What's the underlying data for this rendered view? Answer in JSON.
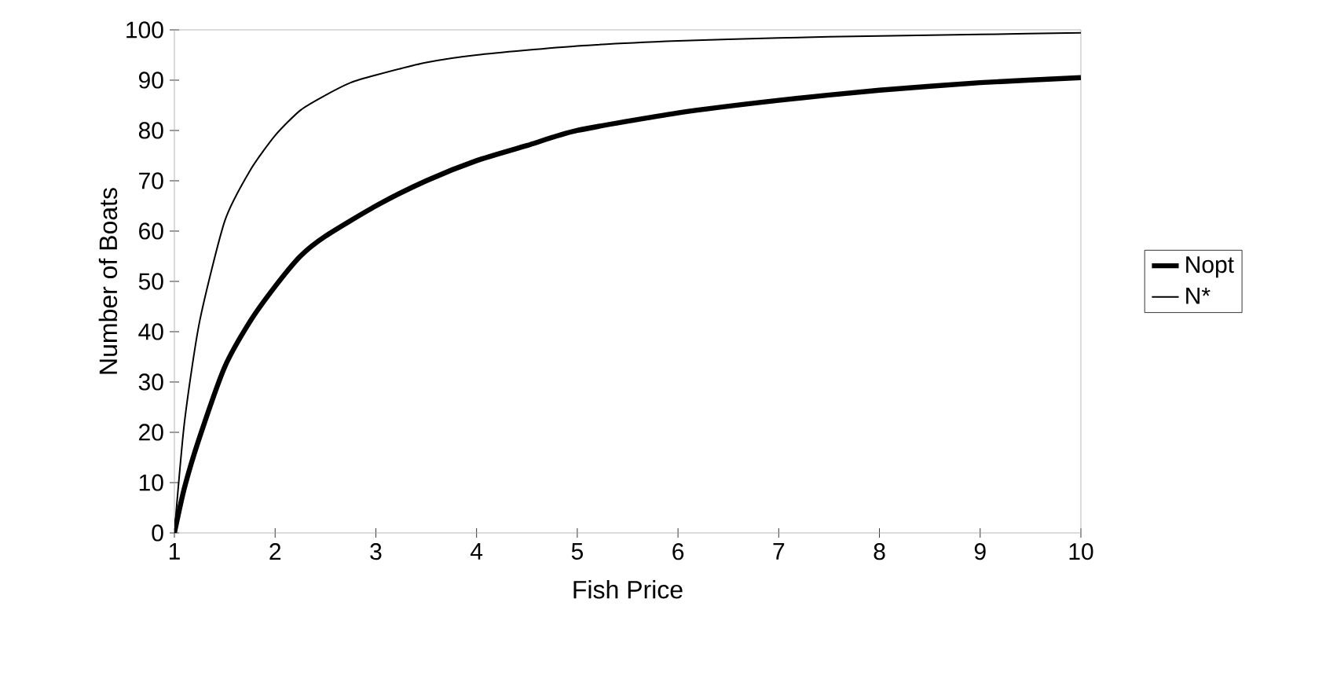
{
  "chart_data": {
    "type": "line",
    "xlabel": "Fish Price",
    "ylabel": "Number of Boats",
    "xlim": [
      1,
      10
    ],
    "ylim": [
      0,
      100
    ],
    "xticks": [
      1,
      2,
      3,
      4,
      5,
      6,
      7,
      8,
      9,
      10
    ],
    "yticks": [
      0,
      10,
      20,
      30,
      40,
      50,
      60,
      70,
      80,
      90,
      100
    ],
    "legend": "right",
    "grid": false,
    "marker": "none",
    "series": [
      {
        "name": "Nopt",
        "color": "#000000",
        "x": [
          1,
          1.1,
          1.25,
          1.5,
          1.75,
          2,
          2.25,
          2.5,
          3,
          3.5,
          4,
          4.5,
          5,
          6,
          7,
          8,
          9,
          10
        ],
        "values": [
          0,
          9,
          19,
          33,
          42,
          49,
          55,
          59,
          65,
          70,
          74,
          77,
          80,
          83.5,
          86,
          88,
          89.5,
          90.5
        ]
      },
      {
        "name": "N*",
        "color": "#000000",
        "x": [
          1,
          1.1,
          1.25,
          1.5,
          1.75,
          2,
          2.25,
          2.5,
          2.75,
          3,
          3.5,
          4,
          5,
          6,
          7,
          8,
          9,
          10
        ],
        "values": [
          0,
          22,
          42,
          62,
          72,
          79,
          84,
          87,
          89.5,
          91,
          93.5,
          95,
          96.8,
          97.8,
          98.4,
          98.8,
          99.1,
          99.4
        ]
      }
    ]
  }
}
